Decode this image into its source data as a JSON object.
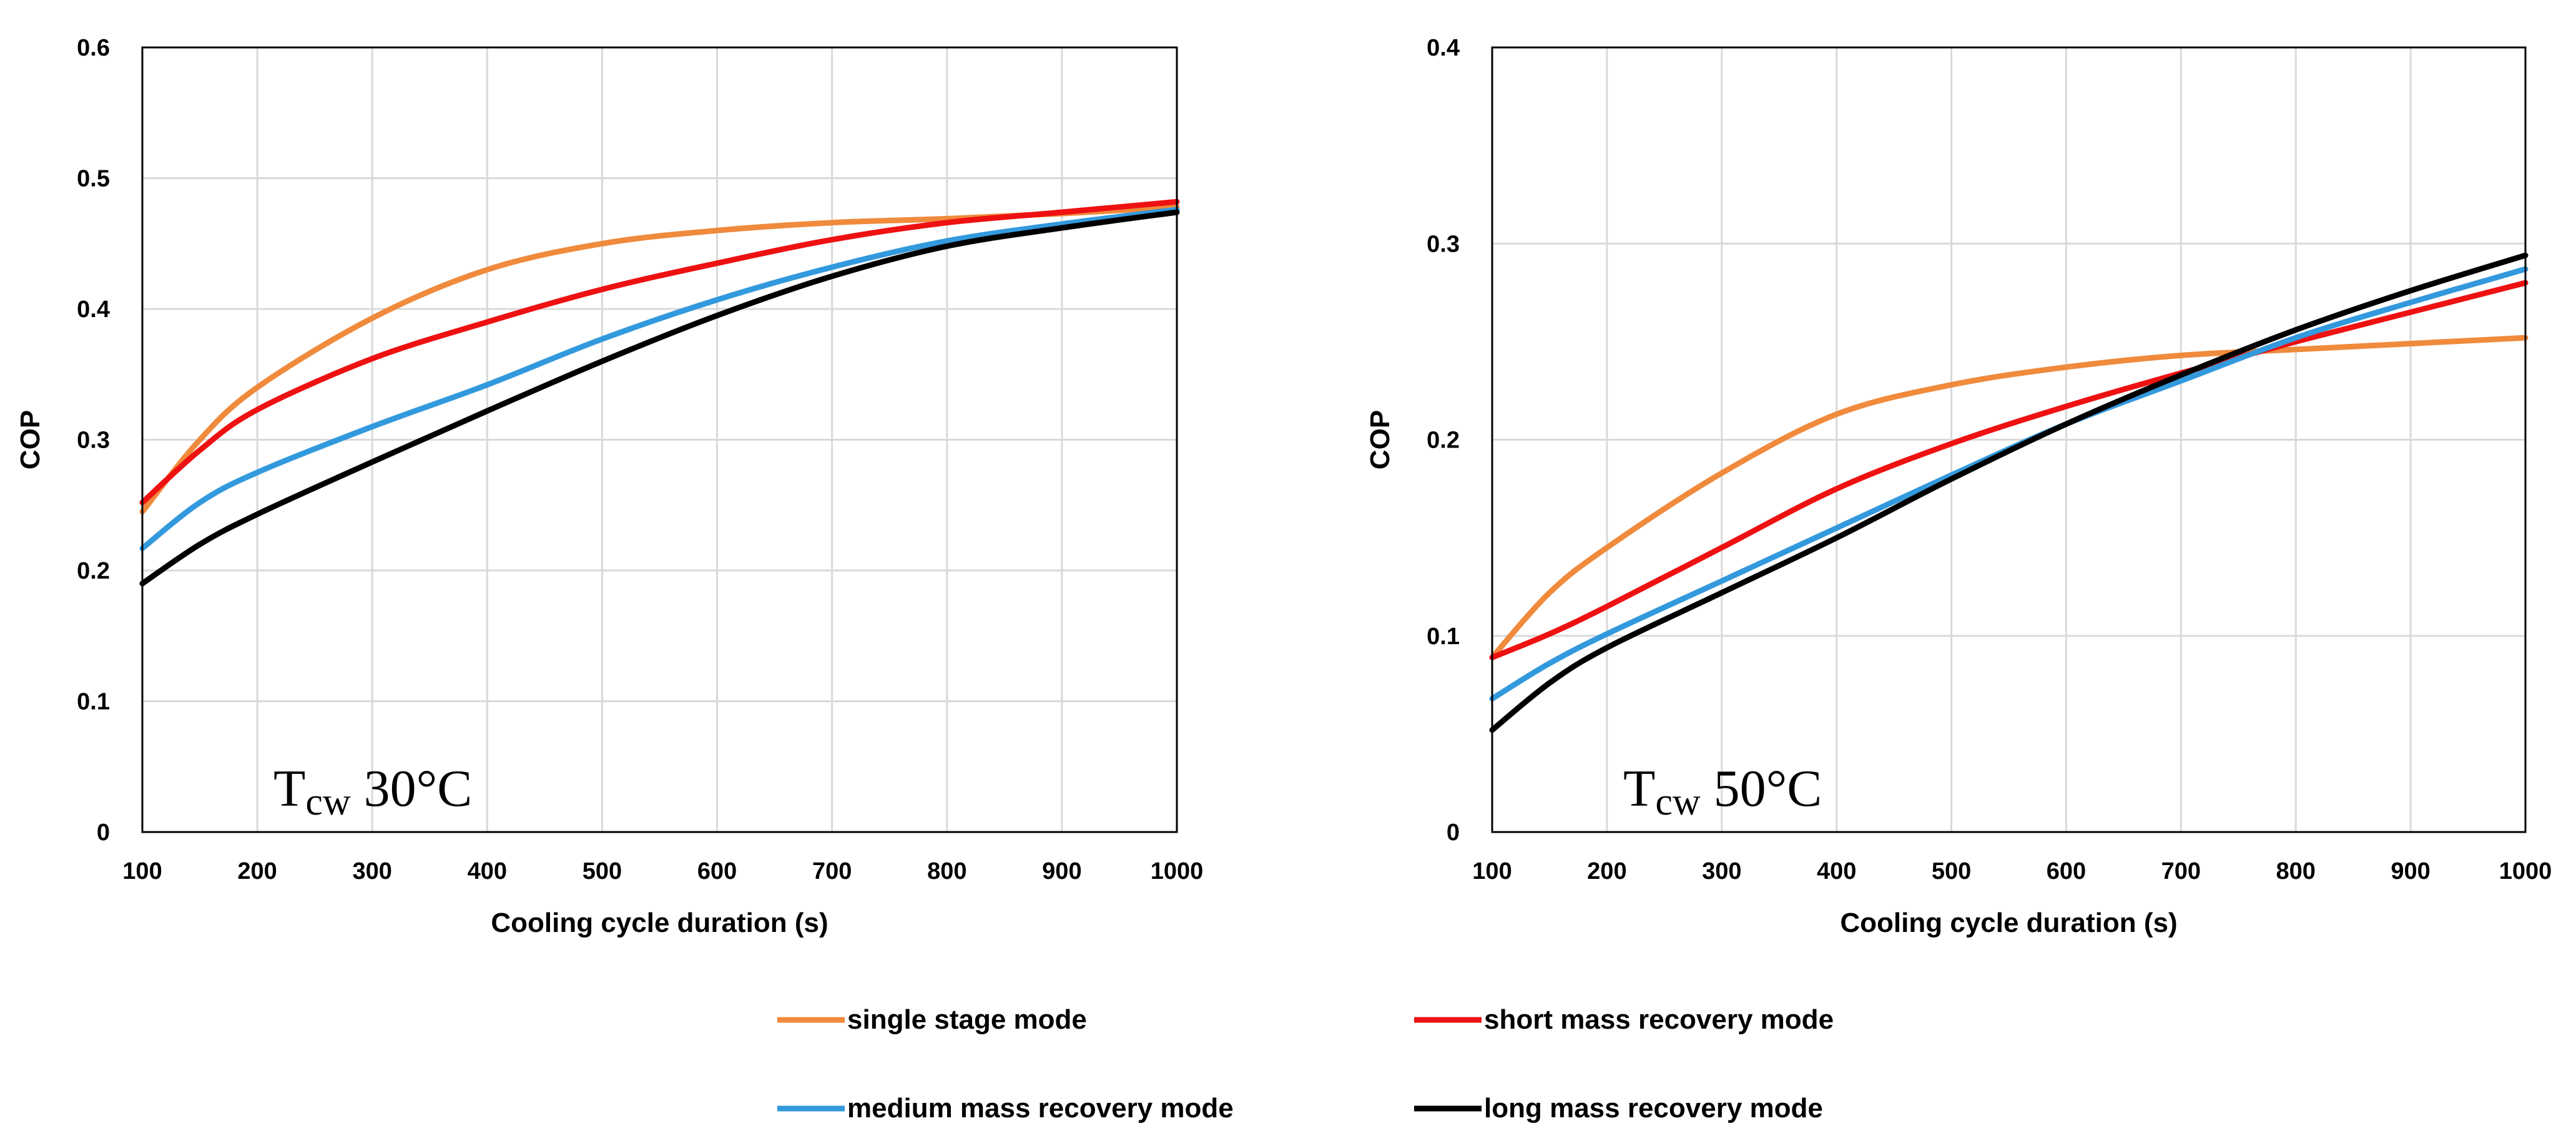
{
  "chart_data": [
    {
      "type": "line",
      "title": "",
      "annotation": {
        "main": "T",
        "sub": "cw",
        "rest": " 30°C"
      },
      "xlabel": "Cooling cycle duration (s)",
      "ylabel": "COP",
      "xlim": [
        100,
        1000
      ],
      "ylim": [
        0,
        0.6
      ],
      "xticks": [
        100,
        200,
        300,
        400,
        500,
        600,
        700,
        800,
        900,
        1000
      ],
      "yticks": [
        0,
        0.1,
        0.2,
        0.3,
        0.4,
        0.5,
        0.6
      ],
      "xtick_labels": [
        "100",
        "200",
        "300",
        "400",
        "500",
        "600",
        "700",
        "800",
        "900",
        "1000"
      ],
      "ytick_labels": [
        "0",
        "0.1",
        "0.2",
        "0.3",
        "0.4",
        "0.5",
        "0.6"
      ],
      "grid": true,
      "x": [
        100,
        150,
        200,
        300,
        400,
        500,
        600,
        700,
        800,
        900,
        1000
      ],
      "series": [
        {
          "name": "single stage mode",
          "color": "#f08a3c",
          "values": [
            0.245,
            0.3,
            0.34,
            0.393,
            0.43,
            0.45,
            0.46,
            0.466,
            0.469,
            0.473,
            0.478
          ]
        },
        {
          "name": "short mass recovery mode",
          "color": "#ee1111",
          "values": [
            0.252,
            0.292,
            0.323,
            0.362,
            0.39,
            0.415,
            0.435,
            0.453,
            0.466,
            0.474,
            0.482
          ]
        },
        {
          "name": "medium mass recovery mode",
          "color": "#3399dd",
          "values": [
            0.217,
            0.252,
            0.275,
            0.31,
            0.342,
            0.377,
            0.407,
            0.432,
            0.452,
            0.465,
            0.476
          ]
        },
        {
          "name": "long mass recovery mode",
          "color": "#000000",
          "values": [
            0.19,
            0.22,
            0.243,
            0.283,
            0.322,
            0.36,
            0.395,
            0.425,
            0.448,
            0.462,
            0.474
          ]
        }
      ]
    },
    {
      "type": "line",
      "title": "",
      "annotation": {
        "main": "T",
        "sub": "cw",
        "rest": " 50°C"
      },
      "xlabel": "Cooling cycle duration (s)",
      "ylabel": "COP",
      "xlim": [
        100,
        1000
      ],
      "ylim": [
        0,
        0.4
      ],
      "xticks": [
        100,
        200,
        300,
        400,
        500,
        600,
        700,
        800,
        900,
        1000
      ],
      "yticks": [
        0,
        0.1,
        0.2,
        0.3,
        0.4
      ],
      "xtick_labels": [
        "100",
        "200",
        "300",
        "400",
        "500",
        "600",
        "700",
        "800",
        "900",
        "1000"
      ],
      "ytick_labels": [
        "0",
        "0.1",
        "0.2",
        "0.3",
        "0.4"
      ],
      "grid": true,
      "x": [
        100,
        150,
        200,
        300,
        400,
        500,
        600,
        700,
        800,
        900,
        1000
      ],
      "series": [
        {
          "name": "single stage mode",
          "color": "#f08a3c",
          "values": [
            0.089,
            0.122,
            0.145,
            0.183,
            0.213,
            0.228,
            0.237,
            0.243,
            0.246,
            0.249,
            0.252
          ]
        },
        {
          "name": "short mass recovery mode",
          "color": "#ee1111",
          "values": [
            0.089,
            0.101,
            0.115,
            0.145,
            0.175,
            0.198,
            0.217,
            0.234,
            0.25,
            0.265,
            0.28
          ]
        },
        {
          "name": "medium mass recovery mode",
          "color": "#3399dd",
          "values": [
            0.068,
            0.086,
            0.101,
            0.128,
            0.155,
            0.182,
            0.208,
            0.23,
            0.252,
            0.27,
            0.287
          ]
        },
        {
          "name": "long mass recovery mode",
          "color": "#000000",
          "values": [
            0.052,
            0.076,
            0.094,
            0.122,
            0.15,
            0.18,
            0.208,
            0.233,
            0.256,
            0.276,
            0.294
          ]
        }
      ]
    }
  ],
  "legend": {
    "placement": "bottom",
    "items": [
      {
        "label": "single stage mode",
        "color": "#f08a3c"
      },
      {
        "label": "short mass recovery mode",
        "color": "#ee1111"
      },
      {
        "label": "medium mass recovery mode",
        "color": "#3399dd"
      },
      {
        "label": "long mass recovery mode",
        "color": "#000000"
      }
    ]
  }
}
